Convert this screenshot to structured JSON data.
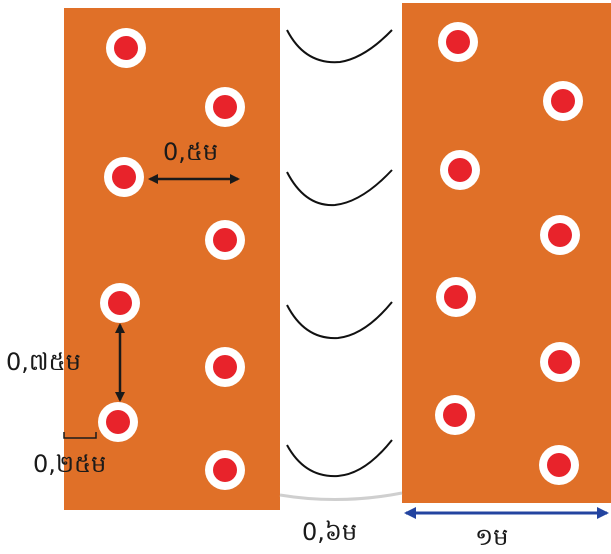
{
  "colors": {
    "bed": "#e07028",
    "hole_ring": "#ffffff",
    "hole": "#e8232b",
    "arrow": "#1a1a1a",
    "width_arrow": "#2344a0",
    "curve": "#111111"
  },
  "labels": {
    "row_spacing": "0,៥ម",
    "hole_spacing": "0,៧៥ម",
    "edge_offset": "0,២៥ម",
    "path_width": "0,៦ម",
    "bed_width": "១ម"
  }
}
